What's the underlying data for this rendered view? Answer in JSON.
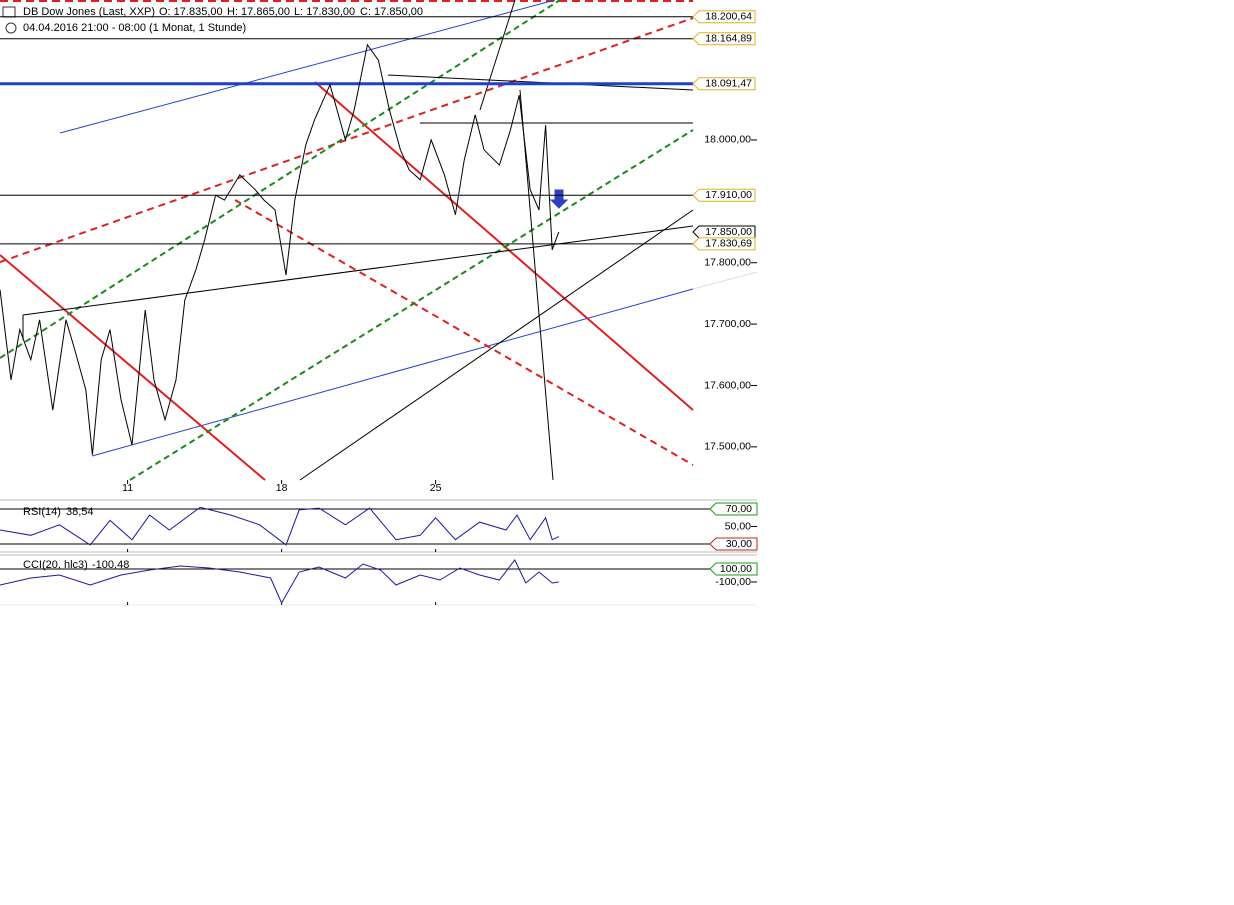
{
  "header": {
    "instrument": "DB Dow Jones (Last, XXP)",
    "open": "O: 17.835,00",
    "high": "H: 17.865,00",
    "low": "L: 17.830,00",
    "close": "C: 17.850,00",
    "period": "04.04.2016 21:00 - 08:00 (1 Monat, 1 Stunde)"
  },
  "chart_data": [
    {
      "type": "line",
      "color": "#000000",
      "x": [
        5.2,
        5.7,
        6.1,
        6.6,
        7.0,
        7.6,
        8.2,
        8.6,
        9.1,
        9.4,
        9.8,
        10.2,
        10.7,
        11.2,
        11.8,
        12.2,
        12.7,
        13.2,
        13.6,
        14.1,
        14.5,
        15.0,
        15.4,
        16.1,
        16.8,
        17.2,
        17.7,
        18.2,
        18.6,
        19.1,
        19.5,
        20.2,
        20.9,
        21.3,
        21.9,
        22.4,
        22.9,
        23.4,
        23.8,
        24.3,
        24.8,
        25.4,
        25.9,
        26.3,
        26.8,
        27.2,
        27.9,
        28.4,
        28.8,
        29.3,
        29.7,
        30.0,
        30.3,
        30.6
      ],
      "values": [
        17756,
        17609,
        17691,
        17642,
        17707,
        17560,
        17707,
        17658,
        17593,
        17487,
        17642,
        17691,
        17577,
        17503,
        17723,
        17609,
        17544,
        17609,
        17739,
        17788,
        17837,
        17910,
        17902,
        17943,
        17919,
        17902,
        17886,
        17780,
        17902,
        17992,
        18033,
        18090,
        18000,
        18049,
        18155,
        18130,
        18049,
        17984,
        17951,
        17935,
        18000,
        17943,
        17878,
        17967,
        18041,
        17984,
        17959,
        18016,
        18073,
        17919,
        17886,
        18024,
        17821,
        17850
      ],
      "xlim": [
        5.2,
        36.7
      ],
      "xticks": [
        11,
        18,
        25
      ],
      "ylim": [
        17446,
        18228
      ],
      "yticks": [
        {
          "value": 17500,
          "label": "17.500,00"
        },
        {
          "value": 17600,
          "label": "17.600,00"
        },
        {
          "value": 17700,
          "label": "17.700,00"
        },
        {
          "value": 17800,
          "label": "17.800,00"
        },
        {
          "value": 18000,
          "label": "18.000,00"
        }
      ],
      "price_levels": [
        {
          "value": 18200.64,
          "label": "18.200,64",
          "color": "#e0b020",
          "line": "#000000"
        },
        {
          "value": 18164.89,
          "label": "18.164,89",
          "color": "#e0b020",
          "line": "#000000"
        },
        {
          "value": 18091.47,
          "label": "18.091,47",
          "color": "#e0b020",
          "line": "#1f3fd0"
        },
        {
          "value": 17910,
          "label": "17.910,00",
          "color": "#e0b020",
          "line": "#000000"
        },
        {
          "value": 17850,
          "label": "17.850,00",
          "color": "#000000",
          "line": null
        },
        {
          "value": 17830.69,
          "label": "17.830,69",
          "color": "#e0b020",
          "line": "#000000"
        }
      ]
    },
    {
      "type": "line",
      "name": "RSI(14)",
      "current": {
        "value": 38.54,
        "label": "38,54"
      },
      "color": "#1a1aa0",
      "x": [
        5.2,
        6.6,
        7.9,
        9.3,
        10.2,
        11.2,
        12.0,
        12.9,
        14.3,
        15.7,
        17.0,
        18.2,
        18.8,
        19.7,
        20.9,
        22.0,
        23.2,
        24.3,
        25.0,
        25.9,
        27.0,
        28.2,
        28.7,
        29.3,
        30.0,
        30.3,
        30.6
      ],
      "values": [
        46,
        40,
        52,
        29,
        57,
        35,
        63,
        46,
        72,
        63,
        52,
        29,
        69,
        71,
        52,
        71,
        35,
        40,
        60,
        35,
        55,
        46,
        63,
        35,
        60,
        35,
        38.54
      ],
      "xlim": [
        5.2,
        36.7
      ],
      "ylim": [
        20.9,
        80.3
      ],
      "yticks": [
        {
          "value": 30,
          "label": "30,00"
        },
        {
          "value": 50,
          "label": "50,00"
        },
        {
          "value": 70,
          "label": "70,00"
        }
      ]
    },
    {
      "type": "line",
      "name": "CCI(20, hlc3)",
      "current": {
        "value": -100.48,
        "label": "-100,48"
      },
      "color": "#1a1aa0",
      "x": [
        5.2,
        6.6,
        7.9,
        9.3,
        10.7,
        12.0,
        13.4,
        14.7,
        16.1,
        17.5,
        18.0,
        18.8,
        19.7,
        20.9,
        21.7,
        22.5,
        23.2,
        24.3,
        25.2,
        26.1,
        27.0,
        27.9,
        28.6,
        29.1,
        29.7,
        30.3,
        30.6
      ],
      "values": [
        -146,
        -38,
        8,
        -146,
        8,
        85,
        146,
        115,
        54,
        -38,
        -423,
        54,
        131,
        -38,
        177,
        85,
        -146,
        8,
        -69,
        115,
        8,
        -69,
        238,
        -115,
        54,
        -115,
        -100.48
      ],
      "xlim": [
        5.2,
        36.7
      ],
      "ylim": [
        -454,
        315
      ],
      "yticks": [
        {
          "value": -100,
          "label": "-100,00"
        },
        {
          "value": 100,
          "label": "100,00"
        }
      ]
    }
  ]
}
